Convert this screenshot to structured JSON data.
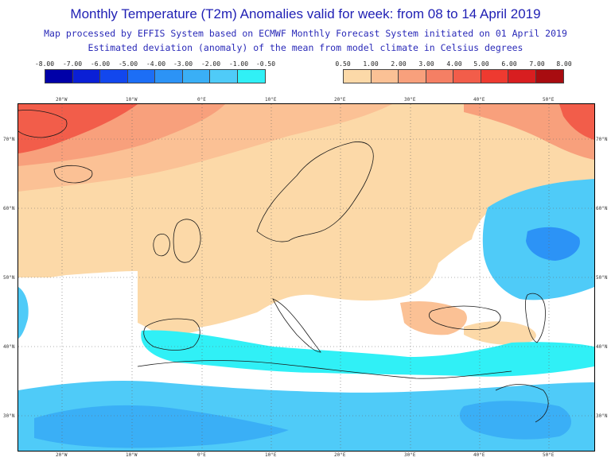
{
  "header": {
    "title": "Monthly Temperature (T2m) Anomalies valid for week: from 08 to 14 April 2019",
    "subtitle1": "Map processed by EFFIS System based on ECMWF Monthly Forecast System initiated on 01 April 2019",
    "subtitle2": "Estimated deviation (anomaly) of the mean from model climate in Celsius degrees"
  },
  "legend": {
    "cold": {
      "labels": [
        "-8.00",
        "-7.00",
        "-6.00",
        "-5.00",
        "-4.00",
        "-3.00",
        "-2.00",
        "-1.00",
        "-0.50"
      ],
      "colors": [
        "#0000a8",
        "#0a1fd6",
        "#1247ee",
        "#1c6ef6",
        "#2c93f6",
        "#3aaff6",
        "#4fcbf8",
        "#30f0f6"
      ]
    },
    "warm": {
      "labels": [
        "0.50",
        "1.00",
        "2.00",
        "3.00",
        "4.00",
        "5.00",
        "6.00",
        "7.00",
        "8.00"
      ],
      "colors": [
        "#fcd9a8",
        "#fbc195",
        "#f8a07c",
        "#f57f64",
        "#f25d4a",
        "#ee3a30",
        "#d81e20",
        "#a80c10"
      ]
    }
  },
  "map": {
    "lon_labels": [
      "20°W",
      "10°W",
      "0°E",
      "10°E",
      "20°E",
      "30°E",
      "40°E",
      "50°E"
    ],
    "lat_labels": [
      "70°N",
      "60°N",
      "50°N",
      "40°N",
      "30°N"
    ],
    "colors": {
      "land_outline": "#1a1a1a",
      "grid": "#666666",
      "neutral": "#ffffff"
    }
  }
}
